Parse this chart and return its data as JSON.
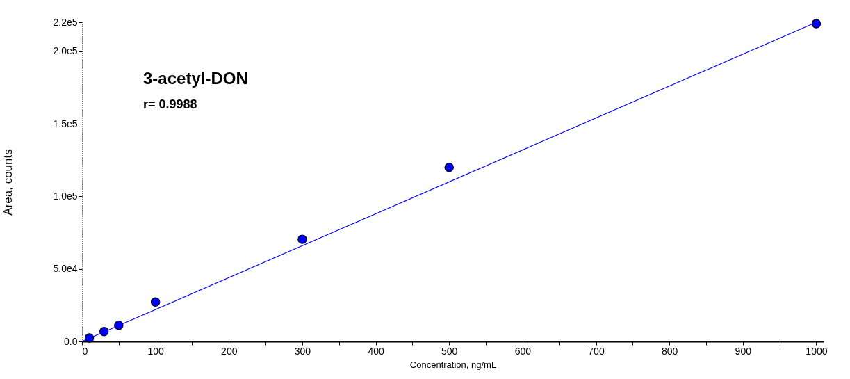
{
  "chart_data": {
    "type": "scatter",
    "xlabel": "Concentration, ng/mL",
    "ylabel": "Area, counts",
    "annotations": [
      "3-acetyl-DON",
      "r= 0.9988"
    ],
    "x": [
      10,
      30,
      50,
      100,
      300,
      500,
      1000
    ],
    "series": [
      {
        "color": "#0000ff",
        "marker": "circle",
        "values": [
          2400,
          6800,
          11200,
          27200,
          70400,
          120000,
          219000
        ]
      },
      {
        "type": "line",
        "color": "#0000ff",
        "marker": "none",
        "x": [
          0,
          1000
        ],
        "values": [
          0,
          220000
        ]
      }
    ],
    "xlim": [
      0,
      1010
    ],
    "ylim": [
      0,
      220000
    ],
    "xticks": [
      0,
      {
        "value": 50,
        "label": null
      },
      100,
      {
        "value": 150,
        "label": null
      },
      200,
      {
        "value": 250,
        "label": null
      },
      300,
      {
        "value": 350,
        "label": null
      },
      400,
      {
        "value": 450,
        "label": null
      },
      500,
      {
        "value": 550,
        "label": null
      },
      600,
      {
        "value": 650,
        "label": null
      },
      700,
      {
        "value": 750,
        "label": null
      },
      800,
      {
        "value": 850,
        "label": null
      },
      900,
      {
        "value": 950,
        "label": null
      },
      1000
    ],
    "yticks": [
      {
        "value": 0,
        "label": "0.0"
      },
      {
        "value": 50000,
        "label": "5.0e4"
      },
      {
        "value": 100000,
        "label": "1.0e5"
      },
      {
        "value": 150000,
        "label": "1.5e5"
      },
      {
        "value": 200000,
        "label": "2.0e5"
      },
      {
        "value": 220000,
        "label": "2.2e5"
      }
    ],
    "grid": false
  }
}
